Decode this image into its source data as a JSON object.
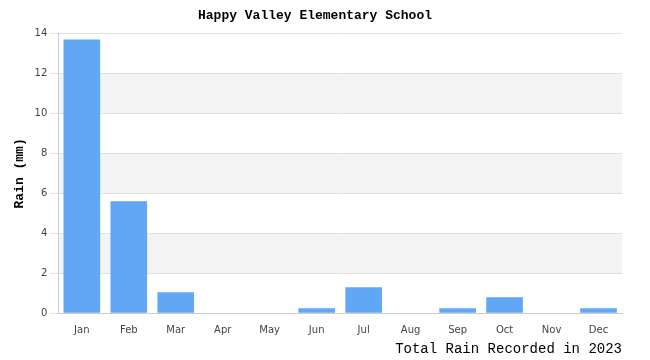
{
  "chart_data": {
    "type": "bar",
    "title": "Happy Valley Elementary School",
    "y_label": "Rain (mm)",
    "x_label": "Total Rain Recorded in 2023",
    "categories": [
      "Jan",
      "Feb",
      "Mar",
      "Apr",
      "May",
      "Jun",
      "Jul",
      "Aug",
      "Sep",
      "Oct",
      "Nov",
      "Dec"
    ],
    "values": [
      13.7,
      5.6,
      1.05,
      0,
      0,
      0.25,
      1.3,
      0,
      0.25,
      0.8,
      0,
      0.25
    ],
    "color": "#60a8f5",
    "ylim": [
      0,
      14
    ],
    "yticks": [
      0,
      2,
      4,
      6,
      8,
      10,
      12,
      14
    ],
    "grid": true
  }
}
